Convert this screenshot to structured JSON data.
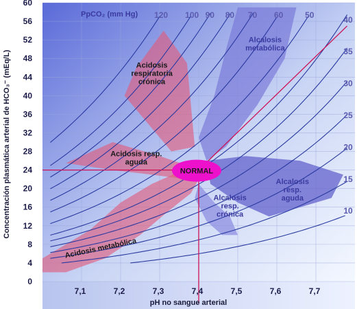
{
  "chart_data": {
    "type": "line",
    "xlabel": "pH no sangue arterial",
    "ylabel": "Concentración plasmática arterial de HCO₃⁻ (mEq/L)",
    "x_ticks": [
      "7,1",
      "7,2",
      "7,3",
      "7,4",
      "7,5",
      "7,6",
      "7,7"
    ],
    "y_ticks": [
      "0",
      "4",
      "8",
      "12",
      "16",
      "20",
      "24",
      "28",
      "32",
      "36",
      "40",
      "44",
      "48",
      "52",
      "56",
      "60"
    ],
    "xlim": [
      7.0,
      7.8
    ],
    "ylim": [
      0,
      60
    ],
    "pco2_title": "PpCO₂ (mm Hg)",
    "isobars": [
      {
        "label": "120",
        "pco2": 120
      },
      {
        "label": "100",
        "pco2": 100
      },
      {
        "label": "90",
        "pco2": 90
      },
      {
        "label": "80",
        "pco2": 80
      },
      {
        "label": "70",
        "pco2": 70
      },
      {
        "label": "60",
        "pco2": 60
      },
      {
        "label": "50",
        "pco2": 50
      },
      {
        "label": "40",
        "pco2": 40
      },
      {
        "label": "35",
        "pco2": 35
      },
      {
        "label": "30",
        "pco2": 30
      },
      {
        "label": "25",
        "pco2": 25
      },
      {
        "label": "20",
        "pco2": 20
      },
      {
        "label": "15",
        "pco2": 15
      },
      {
        "label": "10",
        "pco2": 10
      }
    ],
    "regions": [
      {
        "label_lines": [
          "Acidosis",
          "respiratoria",
          "crónica"
        ],
        "color": "#e05a7a"
      },
      {
        "label_lines": [
          "Alcalosis",
          "metabólica"
        ],
        "color": "#7a7ad8"
      },
      {
        "label_lines": [
          "Acidosis resp.",
          "aguda"
        ],
        "color": "#e05a7a"
      },
      {
        "label_lines": [
          "Alcalosis",
          "resp.",
          "aguda"
        ],
        "color": "#6a6ad0"
      },
      {
        "label_lines": [
          "Alcalosis",
          "resp.",
          "crónica"
        ],
        "color": "#8a8ae0"
      },
      {
        "label_lines": [
          "Acidosis metabólica"
        ],
        "color": "#e05a7a"
      }
    ],
    "normal": {
      "label": "NORMAL",
      "ph": 7.4,
      "hco3": 24,
      "color": "#ee11cc"
    },
    "reference_line_color": "#cc1155",
    "isobar_color": "#2a3aa0",
    "grid": true,
    "background_gradient": [
      "#5a6ad8",
      "#f4f8ff"
    ]
  }
}
